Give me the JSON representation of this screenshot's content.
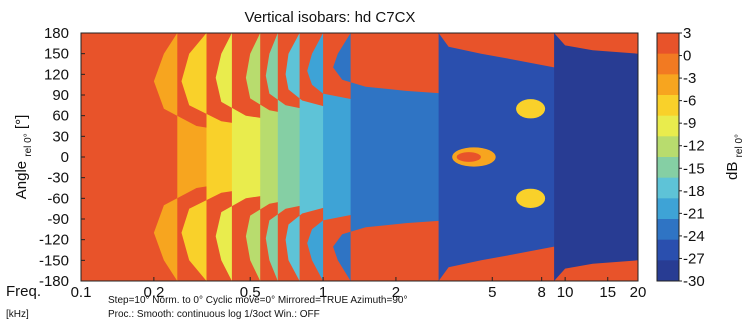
{
  "chart_data": {
    "type": "heatmap",
    "title": "Vertical isobars: hd C7CX",
    "xlabel": "Freq.",
    "xunit": "[kHz]",
    "ylabel": "Angle",
    "ylabel_sub": "rel 0°",
    "ylabel_tail": "[°]",
    "colorbar_label": "dB",
    "colorbar_sub": "rel 0°",
    "x_scale": "log",
    "xlim": [
      0.1,
      20
    ],
    "ylim": [
      -180,
      180
    ],
    "x_ticks": [
      0.1,
      0.2,
      0.5,
      1,
      2,
      5,
      8,
      10,
      15,
      20
    ],
    "x_tick_labels": [
      "0.1",
      "0.2",
      "0.5",
      "1",
      "2",
      "5",
      "8",
      "10",
      "15",
      "20"
    ],
    "y_ticks": [
      180,
      150,
      120,
      90,
      60,
      30,
      0,
      -30,
      -60,
      -90,
      -120,
      -150,
      -180
    ],
    "y_tick_labels": [
      "180",
      "150",
      "120",
      "90",
      "60",
      "30",
      "0",
      "-30",
      "-60",
      "-90",
      "-120",
      "-150",
      "-180"
    ],
    "colorbar_ticks": [
      "3",
      "0",
      "-3",
      "-6",
      "-9",
      "-12",
      "-15",
      "-18",
      "-21",
      "-24",
      "-27",
      "-30"
    ],
    "level_colors": [
      "#e8532a",
      "#f27a22",
      "#f7a51f",
      "#f9d12a",
      "#e9ec4d",
      "#b8dc6e",
      "#85cfa4",
      "#5ec3d7",
      "#3ea3d6",
      "#2f74c4",
      "#2a4fae",
      "#283c93"
    ],
    "grid": false,
    "note": "Step=10°   Norm. to 0°   Cyclic move=0°   Mirrored=TRUE   Azimuth=90°",
    "note2": "Proc.: Smooth: continuous log 1/3oct    Win.: OFF",
    "contours": [
      {
        "level": -3,
        "points": [
          [
            0.25,
            180
          ],
          [
            0.22,
            150
          ],
          [
            0.2,
            110
          ],
          [
            0.22,
            70
          ],
          [
            0.3,
            45
          ],
          [
            0.6,
            28
          ],
          [
            1.2,
            20
          ],
          [
            2.5,
            15
          ],
          [
            4,
            12
          ],
          [
            7,
            8
          ],
          [
            12,
            7
          ],
          [
            20,
            7
          ],
          [
            20,
            -7
          ],
          [
            12,
            -7
          ],
          [
            7,
            -8
          ],
          [
            4,
            -12
          ],
          [
            2.5,
            -15
          ],
          [
            1.2,
            -20
          ],
          [
            0.6,
            -28
          ],
          [
            0.3,
            -45
          ],
          [
            0.22,
            -70
          ],
          [
            0.2,
            -110
          ],
          [
            0.22,
            -150
          ],
          [
            0.25,
            -180
          ]
        ]
      },
      {
        "level": -6,
        "points": [
          [
            0.33,
            180
          ],
          [
            0.28,
            150
          ],
          [
            0.26,
            110
          ],
          [
            0.28,
            75
          ],
          [
            0.38,
            52
          ],
          [
            0.7,
            38
          ],
          [
            1.3,
            30
          ],
          [
            2.5,
            25
          ],
          [
            3.5,
            22
          ],
          [
            5,
            24
          ],
          [
            8,
            25
          ],
          [
            12,
            24
          ],
          [
            20,
            20
          ],
          [
            20,
            -20
          ],
          [
            12,
            -24
          ],
          [
            8,
            -25
          ],
          [
            5,
            -24
          ],
          [
            3.5,
            -22
          ],
          [
            2.5,
            -25
          ],
          [
            1.3,
            -30
          ],
          [
            0.7,
            -38
          ],
          [
            0.38,
            -52
          ],
          [
            0.28,
            -75
          ],
          [
            0.26,
            -110
          ],
          [
            0.28,
            -150
          ],
          [
            0.33,
            -180
          ]
        ]
      },
      {
        "level": -9,
        "points": [
          [
            0.42,
            180
          ],
          [
            0.38,
            150
          ],
          [
            0.36,
            115
          ],
          [
            0.38,
            80
          ],
          [
            0.48,
            60
          ],
          [
            0.8,
            48
          ],
          [
            1.4,
            40
          ],
          [
            2.4,
            35
          ],
          [
            3.5,
            30
          ],
          [
            5,
            32
          ],
          [
            8,
            33
          ],
          [
            12,
            30
          ],
          [
            20,
            27
          ],
          [
            20,
            -27
          ],
          [
            12,
            -30
          ],
          [
            8,
            -33
          ],
          [
            5,
            -32
          ],
          [
            3.5,
            -30
          ],
          [
            2.4,
            -35
          ],
          [
            1.4,
            -40
          ],
          [
            0.8,
            -48
          ],
          [
            0.48,
            -60
          ],
          [
            0.38,
            -80
          ],
          [
            0.36,
            -115
          ],
          [
            0.38,
            -150
          ],
          [
            0.42,
            -180
          ]
        ]
      },
      {
        "level": -12,
        "points": [
          [
            0.55,
            180
          ],
          [
            0.5,
            150
          ],
          [
            0.48,
            115
          ],
          [
            0.5,
            85
          ],
          [
            0.6,
            68
          ],
          [
            0.9,
            56
          ],
          [
            1.5,
            48
          ],
          [
            2.5,
            42
          ],
          [
            3.5,
            38
          ],
          [
            5,
            40
          ],
          [
            8,
            40
          ],
          [
            12,
            38
          ],
          [
            20,
            33
          ],
          [
            20,
            -33
          ],
          [
            12,
            -38
          ],
          [
            8,
            -40
          ],
          [
            5,
            -40
          ],
          [
            3.5,
            -38
          ],
          [
            2.5,
            -42
          ],
          [
            1.5,
            -48
          ],
          [
            0.9,
            -56
          ],
          [
            0.6,
            -68
          ],
          [
            0.5,
            -85
          ],
          [
            0.48,
            -115
          ],
          [
            0.5,
            -150
          ],
          [
            0.55,
            -180
          ]
        ]
      },
      {
        "level": -15,
        "points": [
          [
            0.65,
            180
          ],
          [
            0.6,
            150
          ],
          [
            0.58,
            118
          ],
          [
            0.6,
            92
          ],
          [
            0.7,
            75
          ],
          [
            1,
            64
          ],
          [
            1.6,
            55
          ],
          [
            2.6,
            50
          ],
          [
            3.6,
            46
          ],
          [
            5,
            48
          ],
          [
            8,
            47
          ],
          [
            12,
            44
          ],
          [
            20,
            40
          ],
          [
            20,
            -40
          ],
          [
            12,
            -44
          ],
          [
            8,
            -47
          ],
          [
            5,
            -48
          ],
          [
            3.6,
            -46
          ],
          [
            2.6,
            -50
          ],
          [
            1.6,
            -55
          ],
          [
            1,
            -64
          ],
          [
            0.7,
            -75
          ],
          [
            0.6,
            -92
          ],
          [
            0.58,
            -118
          ],
          [
            0.6,
            -150
          ],
          [
            0.65,
            -180
          ]
        ]
      },
      {
        "level": -18,
        "points": [
          [
            0.8,
            180
          ],
          [
            0.72,
            150
          ],
          [
            0.7,
            120
          ],
          [
            0.72,
            98
          ],
          [
            0.82,
            82
          ],
          [
            1.1,
            70
          ],
          [
            1.7,
            62
          ],
          [
            2.7,
            57
          ],
          [
            3.8,
            55
          ],
          [
            5.5,
            57
          ],
          [
            8,
            55
          ],
          [
            12,
            52
          ],
          [
            20,
            48
          ],
          [
            20,
            -48
          ],
          [
            12,
            -52
          ],
          [
            8,
            -55
          ],
          [
            5.5,
            -57
          ],
          [
            3.8,
            -55
          ],
          [
            2.7,
            -57
          ],
          [
            1.7,
            -62
          ],
          [
            1.1,
            -70
          ],
          [
            0.82,
            -82
          ],
          [
            0.72,
            -98
          ],
          [
            0.7,
            -120
          ],
          [
            0.72,
            -150
          ],
          [
            0.8,
            -180
          ]
        ]
      },
      {
        "level": -21,
        "points": [
          [
            1,
            180
          ],
          [
            0.9,
            150
          ],
          [
            0.86,
            125
          ],
          [
            0.9,
            105
          ],
          [
            1,
            92
          ],
          [
            1.4,
            82
          ],
          [
            2,
            76
          ],
          [
            3,
            72
          ],
          [
            4.5,
            70
          ],
          [
            6,
            74
          ],
          [
            9,
            68
          ],
          [
            13,
            62
          ],
          [
            20,
            58
          ],
          [
            20,
            -58
          ],
          [
            13,
            -62
          ],
          [
            9,
            -68
          ],
          [
            6,
            -74
          ],
          [
            4.5,
            -70
          ],
          [
            3,
            -72
          ],
          [
            2,
            -76
          ],
          [
            1.4,
            -82
          ],
          [
            1,
            -92
          ],
          [
            0.9,
            -105
          ],
          [
            0.86,
            -125
          ],
          [
            0.9,
            -150
          ],
          [
            1,
            -180
          ]
        ]
      },
      {
        "level": -24,
        "points": [
          [
            1.3,
            180
          ],
          [
            1.15,
            150
          ],
          [
            1.1,
            130
          ],
          [
            1.2,
            112
          ],
          [
            1.5,
            102
          ],
          [
            2.2,
            96
          ],
          [
            3.2,
            92
          ],
          [
            5,
            90
          ],
          [
            7,
            92
          ],
          [
            10,
            85
          ],
          [
            14,
            78
          ],
          [
            20,
            72
          ],
          [
            20,
            -72
          ],
          [
            14,
            -78
          ],
          [
            10,
            -85
          ],
          [
            7,
            -92
          ],
          [
            5,
            -90
          ],
          [
            3.2,
            -92
          ],
          [
            2.2,
            -96
          ],
          [
            1.5,
            -102
          ],
          [
            1.2,
            -112
          ],
          [
            1.1,
            -130
          ],
          [
            1.15,
            -150
          ],
          [
            1.3,
            -180
          ]
        ]
      },
      {
        "level": -27,
        "points": [
          [
            3,
            180
          ],
          [
            3.3,
            160
          ],
          [
            4.5,
            150
          ],
          [
            6,
            142
          ],
          [
            9,
            130
          ],
          [
            13,
            120
          ],
          [
            20,
            110
          ],
          [
            20,
            -110
          ],
          [
            13,
            -120
          ],
          [
            9,
            -130
          ],
          [
            6,
            -142
          ],
          [
            4.5,
            -150
          ],
          [
            3.3,
            -160
          ],
          [
            3,
            -180
          ]
        ]
      },
      {
        "level": -30,
        "points": [
          [
            9,
            180
          ],
          [
            10,
            162
          ],
          [
            13,
            155
          ],
          [
            20,
            150
          ],
          [
            20,
            -150
          ],
          [
            13,
            -155
          ],
          [
            10,
            -162
          ],
          [
            9,
            -180
          ]
        ]
      }
    ],
    "spots": [
      {
        "level": -6,
        "x": 7.2,
        "y": 70,
        "rx": 0.06,
        "ry": 14
      },
      {
        "level": -6,
        "x": 7.2,
        "y": -60,
        "rx": 0.06,
        "ry": 14
      },
      {
        "level": -3,
        "x": 4.2,
        "y": 0,
        "rx": 0.09,
        "ry": 14
      },
      {
        "level": 3,
        "x": 4.0,
        "y": 0,
        "rx": 0.05,
        "ry": 7
      }
    ]
  }
}
